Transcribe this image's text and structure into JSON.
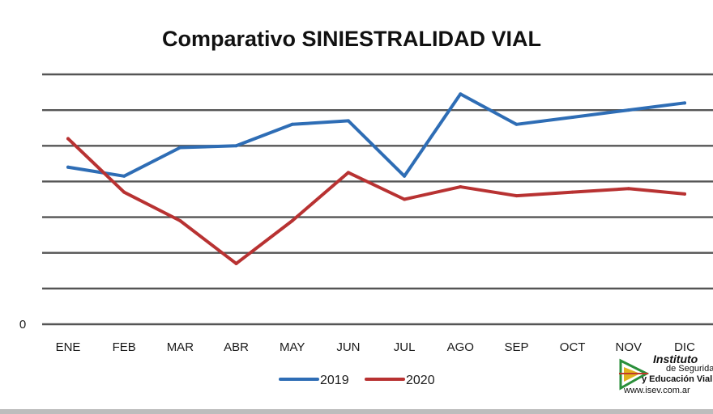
{
  "chart_data": {
    "type": "line",
    "title": "Comparativo SINIESTRALIDAD VIAL",
    "categories": [
      "ENE",
      "FEB",
      "MAR",
      "ABR",
      "MAY",
      "JUN",
      "JUL",
      "AGO",
      "SEP",
      "OCT",
      "NOV",
      "DIC"
    ],
    "ylim": [
      0,
      7
    ],
    "y_tick_labels": [
      "0"
    ],
    "grid": true,
    "legend_position": "bottom-center",
    "series": [
      {
        "name": "2019",
        "color": "#2e6db5",
        "values": [
          4.4,
          4.15,
          4.95,
          5.0,
          5.6,
          5.7,
          4.15,
          6.45,
          5.6,
          5.8,
          6.0,
          6.2
        ]
      },
      {
        "name": "2020",
        "color": "#b83232",
        "values": [
          5.2,
          3.7,
          2.9,
          1.7,
          2.9,
          4.25,
          3.5,
          3.85,
          3.6,
          3.7,
          3.8,
          3.65
        ]
      }
    ]
  },
  "logo": {
    "line1": "Instituto",
    "line2": "de Seguridad",
    "line3": "y Educación Vial",
    "line4": "www.isev.com.ar"
  }
}
